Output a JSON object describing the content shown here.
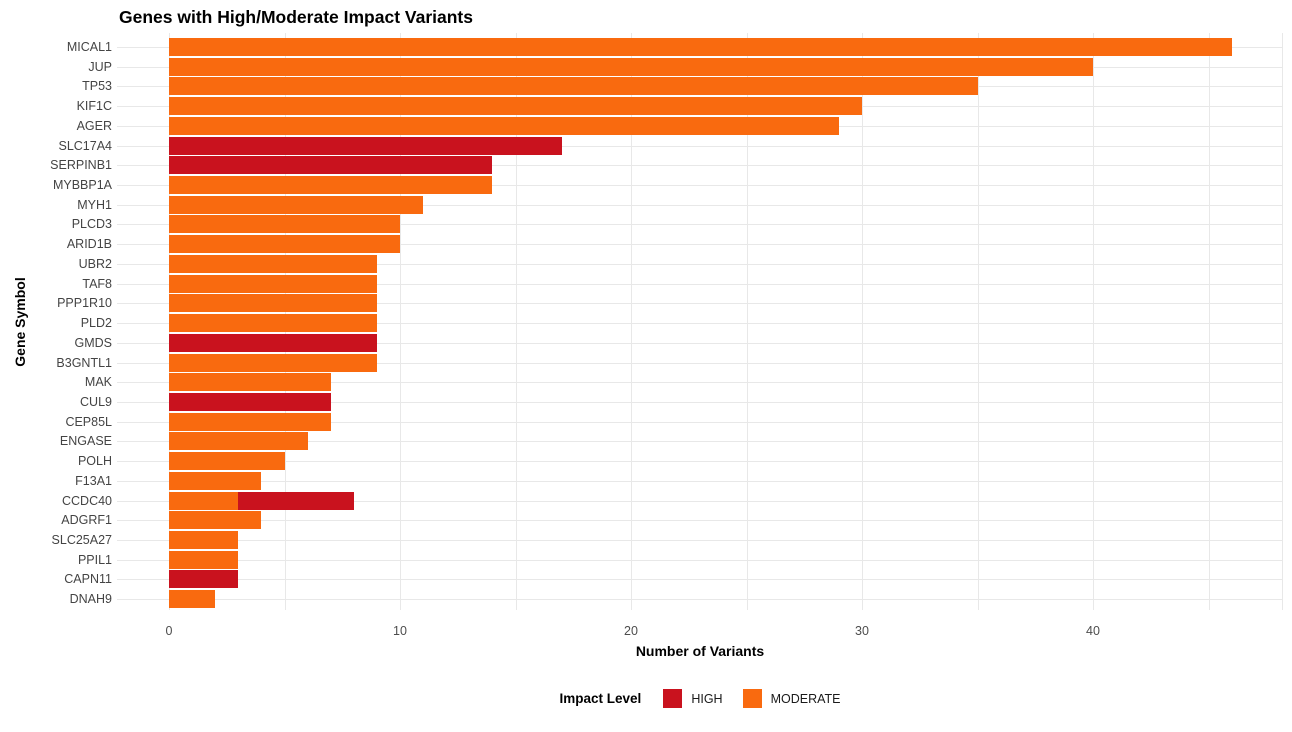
{
  "colors": {
    "HIGH": "#C9121E",
    "MODERATE": "#F96A0F",
    "gridline": "#e8e8e8",
    "tick_text": "#4d4d4d",
    "label_text": "#444444"
  },
  "chart_data": {
    "type": "bar",
    "orientation": "horizontal",
    "stacked": true,
    "grid": true,
    "title": "Genes with High/Moderate Impact Variants",
    "xlabel": "Number of Variants",
    "ylabel": "Gene Symbol",
    "xlim": [
      0,
      48
    ],
    "x_ticks": [
      0,
      10,
      20,
      30,
      40
    ],
    "x_minor_step": 5,
    "legend": {
      "title": "Impact Level",
      "position": "bottom",
      "entries": [
        {
          "label": "HIGH",
          "color": "#C9121E"
        },
        {
          "label": "MODERATE",
          "color": "#F96A0F"
        }
      ]
    },
    "rows": [
      {
        "gene": "MICAL1",
        "segments": [
          {
            "level": "MODERATE",
            "value": 46
          }
        ]
      },
      {
        "gene": "JUP",
        "segments": [
          {
            "level": "MODERATE",
            "value": 40
          }
        ]
      },
      {
        "gene": "TP53",
        "segments": [
          {
            "level": "MODERATE",
            "value": 35
          }
        ]
      },
      {
        "gene": "KIF1C",
        "segments": [
          {
            "level": "MODERATE",
            "value": 30
          }
        ]
      },
      {
        "gene": "AGER",
        "segments": [
          {
            "level": "MODERATE",
            "value": 29
          }
        ]
      },
      {
        "gene": "SLC17A4",
        "segments": [
          {
            "level": "HIGH",
            "value": 17
          }
        ]
      },
      {
        "gene": "SERPINB1",
        "segments": [
          {
            "level": "HIGH",
            "value": 14
          }
        ]
      },
      {
        "gene": "MYBBP1A",
        "segments": [
          {
            "level": "MODERATE",
            "value": 14
          }
        ]
      },
      {
        "gene": "MYH1",
        "segments": [
          {
            "level": "MODERATE",
            "value": 11
          }
        ]
      },
      {
        "gene": "PLCD3",
        "segments": [
          {
            "level": "MODERATE",
            "value": 10
          }
        ]
      },
      {
        "gene": "ARID1B",
        "segments": [
          {
            "level": "MODERATE",
            "value": 10
          }
        ]
      },
      {
        "gene": "UBR2",
        "segments": [
          {
            "level": "MODERATE",
            "value": 9
          }
        ]
      },
      {
        "gene": "TAF8",
        "segments": [
          {
            "level": "MODERATE",
            "value": 9
          }
        ]
      },
      {
        "gene": "PPP1R10",
        "segments": [
          {
            "level": "MODERATE",
            "value": 9
          }
        ]
      },
      {
        "gene": "PLD2",
        "segments": [
          {
            "level": "MODERATE",
            "value": 9
          }
        ]
      },
      {
        "gene": "GMDS",
        "segments": [
          {
            "level": "HIGH",
            "value": 9
          }
        ]
      },
      {
        "gene": "B3GNTL1",
        "segments": [
          {
            "level": "MODERATE",
            "value": 9
          }
        ]
      },
      {
        "gene": "MAK",
        "segments": [
          {
            "level": "MODERATE",
            "value": 7
          }
        ]
      },
      {
        "gene": "CUL9",
        "segments": [
          {
            "level": "HIGH",
            "value": 7
          }
        ]
      },
      {
        "gene": "CEP85L",
        "segments": [
          {
            "level": "MODERATE",
            "value": 7
          }
        ]
      },
      {
        "gene": "ENGASE",
        "segments": [
          {
            "level": "MODERATE",
            "value": 6
          }
        ]
      },
      {
        "gene": "POLH",
        "segments": [
          {
            "level": "MODERATE",
            "value": 5
          }
        ]
      },
      {
        "gene": "F13A1",
        "segments": [
          {
            "level": "MODERATE",
            "value": 4
          }
        ]
      },
      {
        "gene": "CCDC40",
        "segments": [
          {
            "level": "MODERATE",
            "value": 3
          },
          {
            "level": "HIGH",
            "value": 5
          }
        ]
      },
      {
        "gene": "ADGRF1",
        "segments": [
          {
            "level": "MODERATE",
            "value": 4
          }
        ]
      },
      {
        "gene": "SLC25A27",
        "segments": [
          {
            "level": "MODERATE",
            "value": 3
          }
        ]
      },
      {
        "gene": "PPIL1",
        "segments": [
          {
            "level": "MODERATE",
            "value": 3
          }
        ]
      },
      {
        "gene": "CAPN11",
        "segments": [
          {
            "level": "HIGH",
            "value": 3
          }
        ]
      },
      {
        "gene": "DNAH9",
        "segments": [
          {
            "level": "MODERATE",
            "value": 2
          }
        ]
      }
    ]
  }
}
